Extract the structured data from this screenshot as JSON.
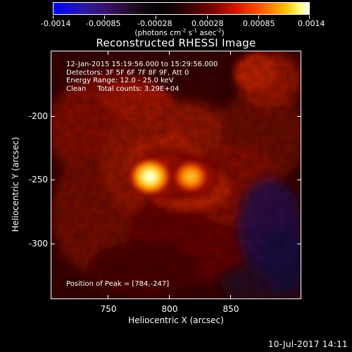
{
  "colorbar": {
    "tick_labels": [
      "-0.0014",
      "-0.00085",
      "-0.00028",
      "0.00028",
      "0.00085",
      "0.0014"
    ],
    "units_prefix": "(photons cm",
    "units_exp1": "-2",
    "units_mid": " s",
    "units_exp2": "-1",
    "units_mid2": " asec",
    "units_exp3": "-2",
    "units_suffix": ")"
  },
  "title": "Reconstructed RHESSI Image",
  "info": {
    "line1": "12-Jan-2015 15:19:56.000 to 15:29:56.000",
    "line2": "Detectors: 3F 5F 6F 7F 8F 9F, Att 0",
    "line3": "Energy Range: 12.0 - 25.0 keV",
    "line4": "Clean     Total counts: 3.29E+04"
  },
  "peak": "Position of Peak = [784,-247]",
  "axes": {
    "x_ticks": [
      "750",
      "800",
      "850"
    ],
    "y_ticks": [
      "-200",
      "-250",
      "-300"
    ],
    "x_title": "Heliocentric X (arcsec)",
    "y_title": "Heliocentric Y (arcsec)"
  },
  "footer_date": "10-Jul-2017 14:11",
  "image": {
    "description_free": true,
    "peak_position_arcsec": [
      784,
      -247
    ],
    "secondary_source_arcsec": [
      812,
      -248
    ],
    "colormap_colors": [
      "#0000ff",
      "#3a1060",
      "#000000",
      "#7a0000",
      "#ff6000",
      "#ffff70",
      "#ffffff"
    ]
  }
}
